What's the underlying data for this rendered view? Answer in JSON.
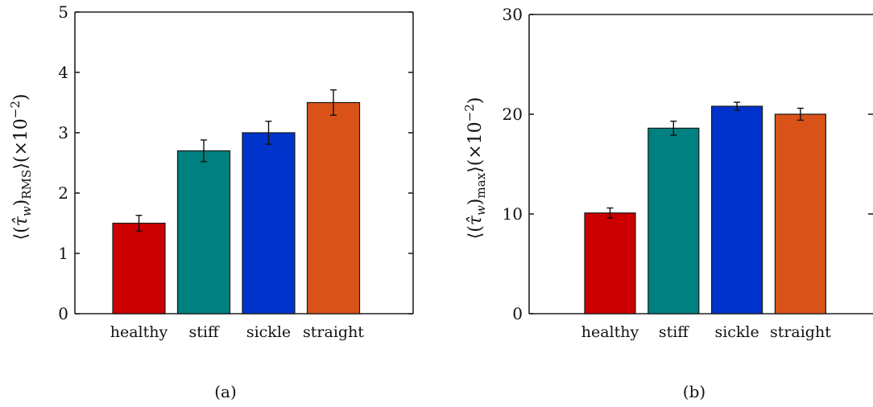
{
  "chart_data": [
    {
      "type": "bar",
      "caption": "(a)",
      "ylabel": "⟨(τ̂w)RMS⟩(×10⁻²)",
      "ylabel_parts": {
        "open": "⟨(",
        "base": "τ̂",
        "sub1": "w",
        "mid": ")",
        "sub2": "RMS",
        "close": "⟩(×10",
        "sup": "−2",
        "end": ")"
      },
      "categories": [
        "healthy",
        "stiff",
        "sickle",
        "straight"
      ],
      "values": [
        1.5,
        2.7,
        3.0,
        3.5
      ],
      "errors": [
        0.13,
        0.18,
        0.19,
        0.21
      ],
      "colors": [
        "#cc0000",
        "#008080",
        "#0033cc",
        "#d95319"
      ],
      "ylim": [
        0,
        5
      ],
      "yticks": [
        "0",
        "1",
        "2",
        "3",
        "4",
        "5"
      ],
      "grid": false
    },
    {
      "type": "bar",
      "caption": "(b)",
      "ylabel": "⟨(τ̂w)max⟩(×10⁻²)",
      "ylabel_parts": {
        "open": "⟨(",
        "base": "τ̂",
        "sub1": "w",
        "mid": ")",
        "sub2": "max",
        "close": "⟩(×10",
        "sup": "−2",
        "end": ")"
      },
      "categories": [
        "healthy",
        "stiff",
        "sickle",
        "straight"
      ],
      "values": [
        10.1,
        18.6,
        20.8,
        20.0
      ],
      "errors": [
        0.5,
        0.7,
        0.4,
        0.6
      ],
      "colors": [
        "#cc0000",
        "#008080",
        "#0033cc",
        "#d95319"
      ],
      "ylim": [
        0,
        30
      ],
      "yticks": [
        "0",
        "10",
        "20",
        "30"
      ],
      "grid": false
    }
  ]
}
